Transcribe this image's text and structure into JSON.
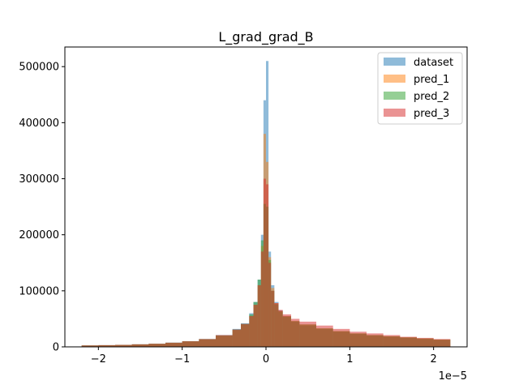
{
  "chart_data": {
    "type": "histogram",
    "title": "L_grad_grad_B",
    "xlabel": "",
    "ylabel": "",
    "x_offset_label": "1e−5",
    "xlim": [
      -2.4,
      2.4
    ],
    "ylim": [
      0,
      535000
    ],
    "x_ticks": [
      -2,
      -1,
      0,
      1,
      2
    ],
    "x_tick_labels": [
      "−2",
      "−1",
      "0",
      "1",
      "2"
    ],
    "y_ticks": [
      0,
      100000,
      200000,
      300000,
      400000,
      500000
    ],
    "y_tick_labels": [
      "0",
      "100000",
      "200000",
      "300000",
      "400000",
      "500000"
    ],
    "grid": false,
    "legend_position": "top-right",
    "bin_edges": [
      -2.2,
      -2.0,
      -1.8,
      -1.6,
      -1.4,
      -1.2,
      -1.0,
      -0.8,
      -0.6,
      -0.4,
      -0.3,
      -0.2,
      -0.15,
      -0.1,
      -0.06,
      -0.03,
      0,
      0.03,
      0.06,
      0.1,
      0.15,
      0.2,
      0.3,
      0.4,
      0.6,
      0.8,
      1.0,
      1.2,
      1.4,
      1.6,
      1.8,
      2.0,
      2.2
    ],
    "series": [
      {
        "name": "dataset",
        "color": "#1f77b4",
        "values": [
          2500,
          3000,
          3500,
          4500,
          5500,
          7500,
          10000,
          14000,
          21000,
          32000,
          42000,
          60000,
          80000,
          120000,
          200000,
          440000,
          510000,
          170000,
          110000,
          80000,
          65000,
          55000,
          45000,
          38000,
          32000,
          27000,
          23000,
          20000,
          18000,
          16000,
          14000,
          12000
        ]
      },
      {
        "name": "pred_1",
        "color": "#ff7f0e",
        "values": [
          2400,
          2900,
          3400,
          4400,
          5400,
          7200,
          9800,
          13500,
          20000,
          30000,
          40000,
          55000,
          75000,
          110000,
          180000,
          380000,
          330000,
          160000,
          105000,
          78000,
          64000,
          55000,
          46000,
          40000,
          33000,
          28000,
          24000,
          21000,
          19000,
          17000,
          15000,
          13000
        ]
      },
      {
        "name": "pred_2",
        "color": "#2ca02c",
        "values": [
          2500,
          3000,
          3500,
          4500,
          5500,
          7400,
          9900,
          13800,
          20500,
          31000,
          41000,
          58000,
          80000,
          120000,
          190000,
          255000,
          250000,
          155000,
          100000,
          76000,
          63000,
          54000,
          46000,
          40000,
          33000,
          28000,
          24000,
          21000,
          19000,
          17000,
          15000,
          13000
        ]
      },
      {
        "name": "pred_3",
        "color": "#d62728",
        "values": [
          2600,
          3100,
          3600,
          4600,
          5600,
          7500,
          10000,
          14000,
          21000,
          31000,
          41000,
          55000,
          75000,
          110000,
          170000,
          300000,
          290000,
          150000,
          100000,
          78000,
          66000,
          58000,
          50000,
          45000,
          38000,
          32000,
          27000,
          24000,
          21000,
          18000,
          16000,
          14000
        ]
      }
    ]
  }
}
